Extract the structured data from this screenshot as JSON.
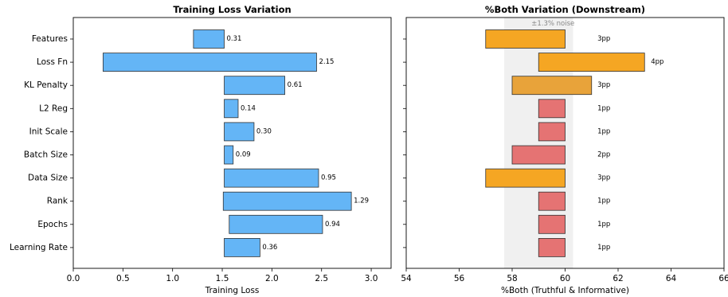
{
  "chart_data": [
    {
      "type": "bar",
      "orientation": "horizontal",
      "title": "Training Loss Variation",
      "xlabel": "Training Loss",
      "ylabel": "",
      "xlim": [
        0.0,
        3.2
      ],
      "xticks": [
        "0.0",
        "0.5",
        "1.0",
        "1.5",
        "2.0",
        "2.5",
        "3.0"
      ],
      "tick_values": [
        0.0,
        0.5,
        1.0,
        1.5,
        2.0,
        2.5,
        3.0
      ],
      "categories": [
        "Features",
        "Loss Fn",
        "KL Penalty",
        "L2 Reg",
        "Init Scale",
        "Batch Size",
        "Data Size",
        "Rank",
        "Epochs",
        "Learning Rate"
      ],
      "bars": [
        {
          "start": 1.21,
          "end": 1.52,
          "label": "0.31",
          "color": "#64b5f6"
        },
        {
          "start": 0.3,
          "end": 2.45,
          "label": "2.15",
          "color": "#64b5f6"
        },
        {
          "start": 1.52,
          "end": 2.13,
          "label": "0.61",
          "color": "#64b5f6"
        },
        {
          "start": 1.52,
          "end": 1.66,
          "label": "0.14",
          "color": "#64b5f6"
        },
        {
          "start": 1.52,
          "end": 1.82,
          "label": "0.30",
          "color": "#64b5f6"
        },
        {
          "start": 1.52,
          "end": 1.61,
          "label": "0.09",
          "color": "#64b5f6"
        },
        {
          "start": 1.52,
          "end": 2.47,
          "label": "0.95",
          "color": "#64b5f6"
        },
        {
          "start": 1.51,
          "end": 2.8,
          "label": "1.29",
          "color": "#64b5f6"
        },
        {
          "start": 1.57,
          "end": 2.51,
          "label": "0.94",
          "color": "#64b5f6"
        },
        {
          "start": 1.52,
          "end": 1.88,
          "label": "0.36",
          "color": "#64b5f6"
        }
      ]
    },
    {
      "type": "bar",
      "orientation": "horizontal",
      "title": "%Both Variation (Downstream)",
      "xlabel": "%Both (Truthful & Informative)",
      "ylabel": "",
      "xlim": [
        54,
        66
      ],
      "xticks": [
        "54",
        "56",
        "58",
        "60",
        "62",
        "64",
        "66"
      ],
      "tick_values": [
        54,
        56,
        58,
        60,
        62,
        64,
        66
      ],
      "categories": [
        "Features",
        "Loss Fn",
        "KL Penalty",
        "L2 Reg",
        "Init Scale",
        "Batch Size",
        "Data Size",
        "Rank",
        "Epochs",
        "Learning Rate"
      ],
      "noise_band": {
        "start": 57.7,
        "end": 60.3,
        "label": "±1.3% noise",
        "color": "#f0f0f0"
      },
      "bars": [
        {
          "start": 57,
          "end": 60,
          "label": "3pp",
          "color": "#f5a623"
        },
        {
          "start": 59,
          "end": 63,
          "label": "4pp",
          "color": "#f5a623"
        },
        {
          "start": 58,
          "end": 61,
          "label": "3pp",
          "color": "#e8a33a"
        },
        {
          "start": 59,
          "end": 60,
          "label": "1pp",
          "color": "#e57373"
        },
        {
          "start": 59,
          "end": 60,
          "label": "1pp",
          "color": "#e57373"
        },
        {
          "start": 58,
          "end": 60,
          "label": "2pp",
          "color": "#e57373"
        },
        {
          "start": 57,
          "end": 60,
          "label": "3pp",
          "color": "#f5a623"
        },
        {
          "start": 59,
          "end": 60,
          "label": "1pp",
          "color": "#e57373"
        },
        {
          "start": 59,
          "end": 60,
          "label": "1pp",
          "color": "#e57373"
        },
        {
          "start": 59,
          "end": 60,
          "label": "1pp",
          "color": "#e57373"
        }
      ]
    }
  ]
}
